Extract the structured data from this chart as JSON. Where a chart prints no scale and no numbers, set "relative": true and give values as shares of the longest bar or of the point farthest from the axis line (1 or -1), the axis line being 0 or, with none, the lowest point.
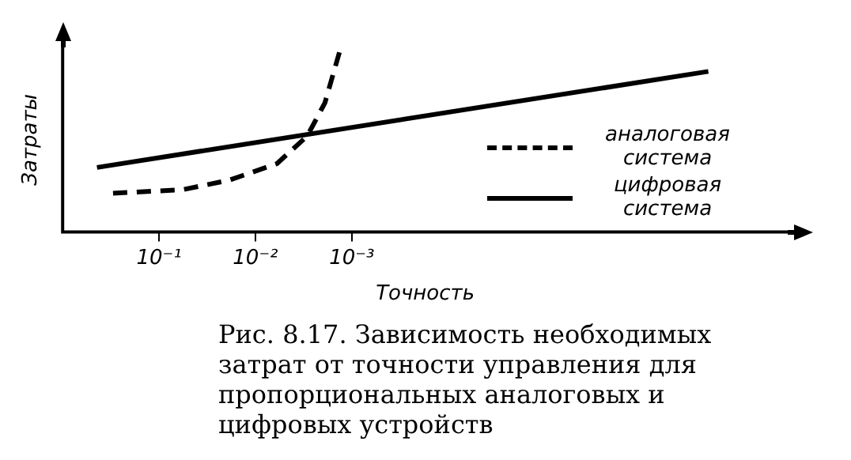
{
  "chart_data": {
    "type": "line",
    "relative": true,
    "log": "x",
    "xlabel": "Точность",
    "ylabel": "Затраты",
    "x": [
      0.44,
      2e-07
    ],
    "xlim": [
      1,
      3e-08
    ],
    "xticks": [
      {
        "value": 0.1,
        "label": "10⁻¹"
      },
      {
        "value": 0.01,
        "label": "10⁻²"
      },
      {
        "value": 0.001,
        "label": "10⁻³"
      }
    ],
    "series": [
      {
        "name": "аналоговая система",
        "color": "#000000",
        "line_style": "dashed",
        "x": [
          0.3,
          0.056,
          0.019,
          0.006,
          0.0029,
          0.0019,
          0.0013
        ],
        "values": [
          0.21,
          0.23,
          0.28,
          0.37,
          0.52,
          0.7,
          1
        ]
      },
      {
        "name": "цифровая система",
        "color": "#000000",
        "line_style": "solid",
        "values": [
          0.35,
          0.87
        ]
      }
    ],
    "grid": false,
    "legend": "right",
    "marker": "none",
    "annotations": [
      "Рис. 8.17. Зависимость необходимых затрат от точности управления для пропорциональных аналоговых и цифровых устройств"
    ]
  }
}
